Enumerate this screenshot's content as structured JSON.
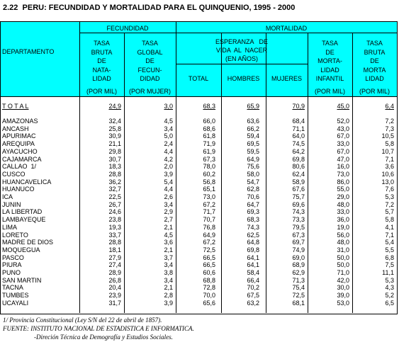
{
  "title": "2.22  PERU: FECUNDIDAD Y MORTALIDAD PARA EL QUINQUENIO, 1995 - 2000",
  "table": {
    "department_header": "DEPARTAMENTO",
    "group_headers": [
      "FECUNDIDAD",
      "MORTALIDAD"
    ],
    "life_expectancy_header": [
      "ESPERANZA   DE",
      "VIDA  AL  NACER",
      "(EN AÑOS)"
    ],
    "columns": [
      {
        "lines": [
          "TASA",
          "BRUTA",
          "DE",
          "NATA-",
          "LIDAD"
        ],
        "unit": "(POR MIL)"
      },
      {
        "lines": [
          "TASA",
          "GLOBAL",
          "DE",
          "FECUN-",
          "DIDAD"
        ],
        "unit": "(POR MUJER)"
      },
      {
        "lines": [
          "TOTAL"
        ]
      },
      {
        "lines": [
          "HOMBRES"
        ]
      },
      {
        "lines": [
          "MUJERES"
        ]
      },
      {
        "lines": [
          "TASA",
          "DE",
          "MORTA-",
          "LIDAD",
          "INFANTIL"
        ],
        "unit": "(POR MIL)"
      },
      {
        "lines": [
          "TASA",
          "BRUTA",
          "DE",
          "MORTA",
          "LIDAD"
        ],
        "unit": "(POR MIL)"
      }
    ],
    "rows": [
      [
        "T O T A L",
        "24,9",
        "3,0",
        "68,3",
        "65,9",
        "70,9",
        "45,0",
        "6,4"
      ],
      [
        "AMAZONAS",
        "32,4",
        "4,5",
        "66,0",
        "63,6",
        "68,4",
        "52,0",
        "7,2"
      ],
      [
        "ANCASH",
        "25,8",
        "3,4",
        "68,6",
        "66,2",
        "71,1",
        "43,0",
        "7,3"
      ],
      [
        "APURIMAC",
        "30,9",
        "5,0",
        "61,8",
        "59,4",
        "64,0",
        "67,0",
        "10,5"
      ],
      [
        "AREQUIPA",
        "21,1",
        "2,4",
        "71,9",
        "69,5",
        "74,5",
        "33,0",
        "5,8"
      ],
      [
        "AYACUCHO",
        "29,8",
        "4,4",
        "61,9",
        "59,5",
        "64,2",
        "67,0",
        "10,7"
      ],
      [
        "CAJAMARCA",
        "30,7",
        "4,2",
        "67,3",
        "64,9",
        "69,8",
        "47,0",
        "7,1"
      ],
      [
        "CALLAO  1/",
        "18,3",
        "2,0",
        "78,0",
        "75,6",
        "80,6",
        "16,0",
        "3,6"
      ],
      [
        "CUSCO",
        "28,8",
        "3,9",
        "60,2",
        "58,0",
        "62,4",
        "73,0",
        "10,6"
      ],
      [
        "HUANCAVELICA",
        "36,2",
        "5,4",
        "56,8",
        "54,7",
        "58,9",
        "86,0",
        "13,0"
      ],
      [
        "HUANUCO",
        "32,7",
        "4,4",
        "65,1",
        "62,8",
        "67,6",
        "55,0",
        "7,6"
      ],
      [
        "ICA",
        "22,5",
        "2,6",
        "73,0",
        "70,6",
        "75,7",
        "29,0",
        "5,3"
      ],
      [
        "JUNIN",
        "26,7",
        "3,4",
        "67,2",
        "64,7",
        "69,6",
        "48,0",
        "7,2"
      ],
      [
        "LA LIBERTAD",
        "24,6",
        "2,9",
        "71,7",
        "69,3",
        "74,3",
        "33,0",
        "5,7"
      ],
      [
        "LAMBAYEQUE",
        "23,8",
        "2,7",
        "70,7",
        "68,3",
        "73,3",
        "36,0",
        "5,8"
      ],
      [
        "LIMA",
        "19,3",
        "2,1",
        "76,8",
        "74,3",
        "79,5",
        "19,0",
        "4,1"
      ],
      [
        "LORETO",
        "33,7",
        "4,5",
        "64,9",
        "62,5",
        "67,3",
        "56,0",
        "7,1"
      ],
      [
        "MADRE DE DIOS",
        "28,8",
        "3,6",
        "67,2",
        "64,8",
        "69,7",
        "48,0",
        "5,4"
      ],
      [
        "MOQUEGUA",
        "18,1",
        "2,1",
        "72,5",
        "69,8",
        "74,9",
        "31,0",
        "5,5"
      ],
      [
        "PASCO",
        "27,9",
        "3,7",
        "66,5",
        "64,1",
        "69,0",
        "50,0",
        "6,8"
      ],
      [
        "PIURA",
        "27,4",
        "3,4",
        "66,5",
        "64,1",
        "68,9",
        "50,0",
        "7,5"
      ],
      [
        "PUNO",
        "28,9",
        "3,8",
        "60,6",
        "58,4",
        "62,9",
        "71,0",
        "11,1"
      ],
      [
        "SAN MARTIN",
        "26,8",
        "3,4",
        "68,8",
        "66,4",
        "71,3",
        "42,0",
        "5,3"
      ],
      [
        "TACNA",
        "20,4",
        "2,1",
        "72,8",
        "70,2",
        "75,4",
        "30,0",
        "4,3"
      ],
      [
        "TUMBES",
        "23,9",
        "2,8",
        "70,0",
        "67,5",
        "72,5",
        "39,0",
        "5,2"
      ],
      [
        "UCAYALI",
        "31,7",
        "3,9",
        "65,6",
        "63,2",
        "68,1",
        "53,0",
        "6,5"
      ]
    ]
  },
  "footnotes": [
    "1/ Provincia Constitucional (Ley S/N del 22 de abril de 1857).",
    "FUENTE: INSTITUTO NACIONAL DE ESTADISTICA E INFORMATICA.",
    "-Direción Técnica de Demografía y Estudios Sociales."
  ]
}
